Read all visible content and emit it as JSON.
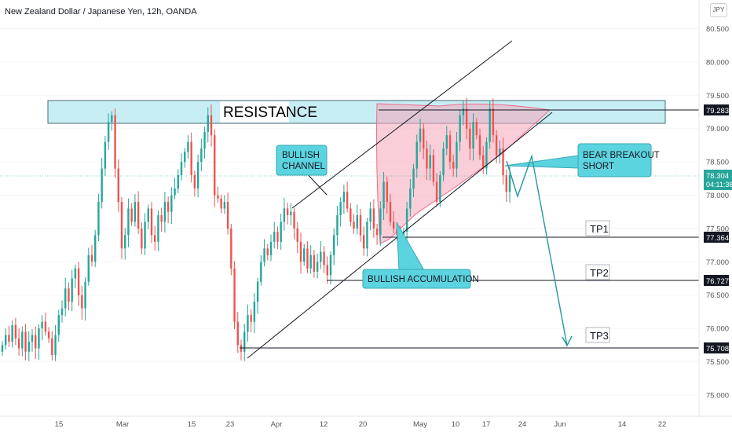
{
  "header": {
    "title": "New Zealand Dollar / Japanese Yen, 12h, OANDA",
    "currency_button": "JPY"
  },
  "colors": {
    "up": "#26a69a",
    "down": "#ef5350",
    "resistance_fill": "#c8eef5",
    "annotation_fill": "#5cd4df",
    "wedge_fill": "#f4a6b8",
    "arrow": "#26999b",
    "axis_text": "#555555"
  },
  "chart_data": {
    "type": "candlestick",
    "title": "New Zealand Dollar / Japanese Yen, 12h, OANDA",
    "ylim": [
      74.6,
      81.0
    ],
    "y_ticks": [
      "75.000",
      "75.500",
      "76.000",
      "76.500",
      "77.000",
      "77.500",
      "78.000",
      "78.500",
      "79.000",
      "79.500",
      "80.000",
      "80.500"
    ],
    "x_ticks": [
      "15",
      "Mar",
      "15",
      "23",
      "Apr",
      "12",
      "20",
      "May",
      "10",
      "17",
      "24",
      "Jun",
      "14",
      "22"
    ],
    "price_labels": {
      "resistance": "79.283",
      "last": "78.304",
      "countdown": "04:11:36",
      "tp1": "77.364",
      "tp2": "76.727",
      "tp3": "75.708"
    },
    "levels": {
      "resistance": 79.283,
      "tp1": 77.364,
      "tp2": 76.727,
      "tp3": 75.708,
      "last": 78.304
    },
    "annotations": {
      "resistance": "RESISTANCE",
      "bullish_channel": [
        "BULLISH",
        "CHANNEL"
      ],
      "bullish_accumulation": "BULLISH ACCUMULATION",
      "bear_breakout": [
        "BEAR BREAKOUT",
        "SHORT"
      ],
      "tp1": "TP1",
      "tp2": "TP2",
      "tp3": "TP3"
    },
    "closes": [
      75.75,
      75.9,
      75.8,
      76.05,
      75.85,
      75.7,
      75.95,
      75.65,
      75.8,
      75.9,
      75.7,
      76.0,
      76.1,
      75.95,
      75.85,
      75.6,
      75.9,
      76.2,
      76.3,
      76.6,
      76.4,
      76.75,
      76.9,
      76.5,
      76.3,
      76.7,
      77.1,
      77.0,
      77.4,
      77.9,
      78.4,
      78.8,
      79.1,
      79.2,
      78.4,
      77.9,
      77.2,
      77.4,
      77.8,
      77.6,
      77.9,
      77.5,
      77.2,
      77.6,
      77.8,
      77.4,
      77.3,
      77.7,
      77.6,
      77.9,
      77.75,
      78.0,
      78.1,
      78.3,
      78.5,
      78.65,
      78.8,
      78.3,
      78.1,
      78.5,
      78.7,
      78.95,
      79.2,
      78.9,
      78.0,
      77.95,
      77.8,
      77.9,
      77.5,
      76.9,
      76.1,
      75.75,
      75.65,
      75.95,
      76.2,
      76.1,
      76.4,
      76.7,
      77.0,
      77.2,
      77.1,
      77.3,
      77.45,
      77.3,
      77.6,
      77.8,
      77.7,
      77.75,
      77.5,
      77.3,
      77.0,
      77.2,
      76.9,
      77.1,
      76.85,
      77.0,
      77.15,
      76.95,
      76.8,
      77.1,
      77.4,
      77.7,
      77.9,
      78.05,
      77.8,
      77.6,
      77.5,
      77.7,
      77.4,
      77.2,
      77.6,
      77.8,
      77.5,
      77.4,
      77.8,
      78.2,
      77.9,
      77.6,
      77.5,
      77.4,
      77.3,
      77.45,
      77.8,
      78.1,
      78.4,
      78.8,
      79.0,
      78.7,
      78.4,
      78.6,
      78.2,
      77.9,
      78.3,
      78.7,
      78.9,
      78.5,
      78.4,
      78.8,
      79.2,
      79.3,
      79.0,
      78.7,
      79.1,
      78.9,
      78.6,
      78.4,
      78.8,
      79.3,
      78.9,
      78.6,
      78.7,
      78.3,
      78.05,
      78.3
    ]
  }
}
